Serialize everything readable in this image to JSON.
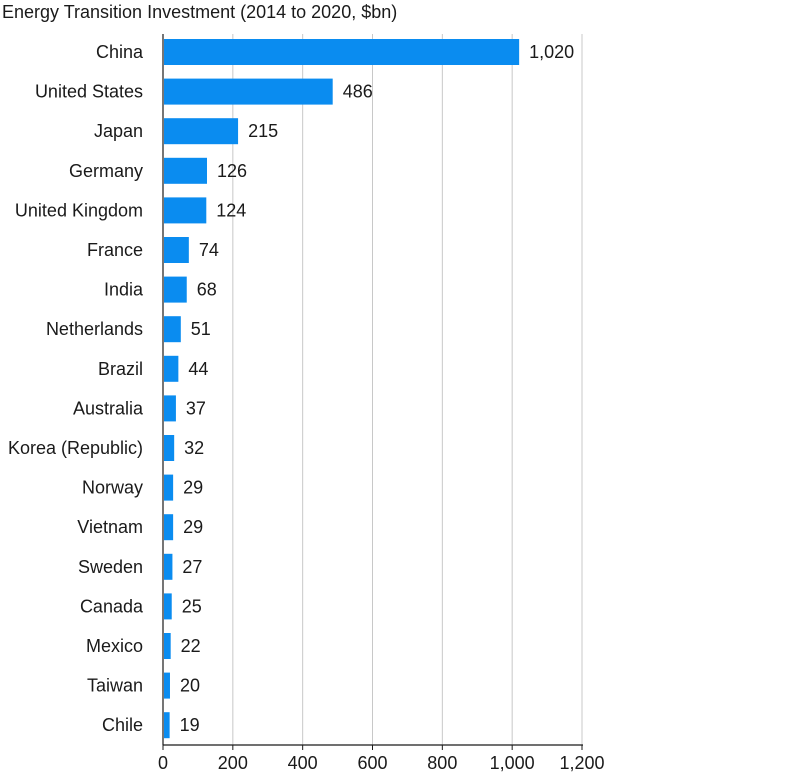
{
  "chart_data": {
    "type": "bar",
    "orientation": "horizontal",
    "title": "Energy Transition Investment (2014 to 2020, $bn)",
    "xlabel": "",
    "ylabel": "",
    "categories": [
      "China",
      "United States",
      "Japan",
      "Germany",
      "United Kingdom",
      "France",
      "India",
      "Netherlands",
      "Brazil",
      "Australia",
      "Korea (Republic)",
      "Norway",
      "Vietnam",
      "Sweden",
      "Canada",
      "Mexico",
      "Taiwan",
      "Chile"
    ],
    "values": [
      1020,
      486,
      215,
      126,
      124,
      74,
      68,
      51,
      44,
      37,
      32,
      29,
      29,
      27,
      25,
      22,
      20,
      19
    ],
    "value_labels": [
      "1,020",
      "486",
      "215",
      "126",
      "124",
      "74",
      "68",
      "51",
      "44",
      "37",
      "32",
      "29",
      "29",
      "27",
      "25",
      "22",
      "20",
      "19"
    ],
    "xlim": [
      0,
      1200
    ],
    "x_ticks": [
      0,
      200,
      400,
      600,
      800,
      1000,
      1200
    ],
    "x_tick_labels": [
      "0",
      "200",
      "400",
      "600",
      "800",
      "1,000",
      "1,200"
    ],
    "grid": "vertical",
    "legend": "none",
    "colors": {
      "bar": "#0a8cf0",
      "grid": "#c8c8c8",
      "axis": "#1a1a1a",
      "text": "#1a1a1a"
    }
  }
}
